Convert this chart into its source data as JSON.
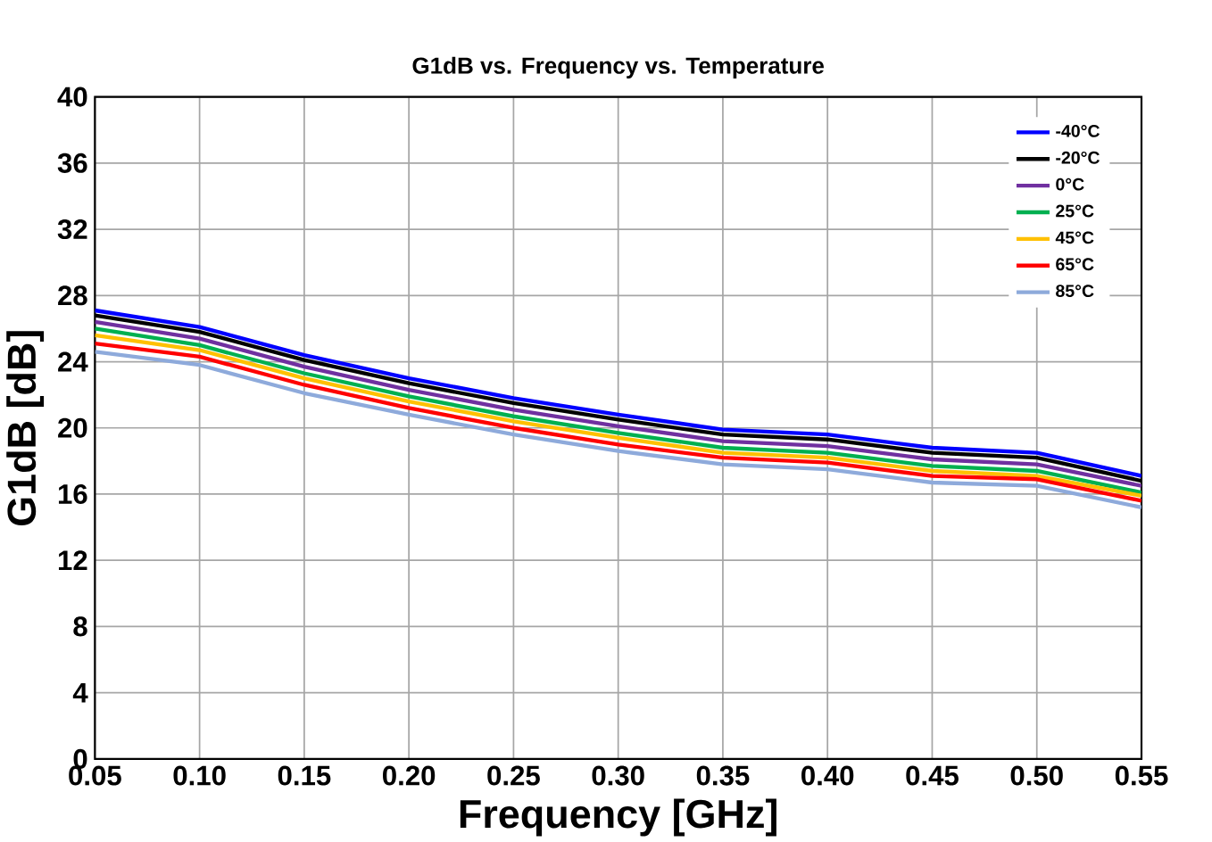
{
  "chart_data": {
    "type": "line",
    "title": "G1dB vs. Frequency vs. Temperature",
    "xlabel": "Frequency [GHz]",
    "ylabel": "G1dB [dB]",
    "x": [
      0.05,
      0.1,
      0.15,
      0.2,
      0.25,
      0.3,
      0.35,
      0.4,
      0.45,
      0.5,
      0.55
    ],
    "series": [
      {
        "name": "-40°C",
        "color": "#0000ff",
        "values": [
          27.1,
          26.1,
          24.4,
          23.0,
          21.8,
          20.8,
          19.9,
          19.6,
          18.8,
          18.5,
          17.1
        ]
      },
      {
        "name": "-20°C",
        "color": "#000000",
        "values": [
          26.8,
          25.8,
          24.1,
          22.7,
          21.5,
          20.5,
          19.6,
          19.3,
          18.5,
          18.2,
          16.8
        ]
      },
      {
        "name": "0°C",
        "color": "#7030a0",
        "values": [
          26.4,
          25.4,
          23.7,
          22.3,
          21.1,
          20.1,
          19.2,
          18.9,
          18.1,
          17.8,
          16.5
        ]
      },
      {
        "name": "25°C",
        "color": "#00b050",
        "values": [
          26.0,
          25.0,
          23.3,
          21.9,
          20.7,
          19.7,
          18.8,
          18.5,
          17.7,
          17.4,
          16.1
        ]
      },
      {
        "name": "45°C",
        "color": "#ffc000",
        "values": [
          25.6,
          24.7,
          23.0,
          21.6,
          20.4,
          19.4,
          18.5,
          18.2,
          17.4,
          17.1,
          15.9
        ]
      },
      {
        "name": "65°C",
        "color": "#ff0000",
        "values": [
          25.1,
          24.3,
          22.6,
          21.2,
          20.0,
          19.0,
          18.2,
          17.9,
          17.1,
          16.9,
          15.6
        ]
      },
      {
        "name": "85°C",
        "color": "#8eaadb",
        "values": [
          24.6,
          23.8,
          22.1,
          20.8,
          19.6,
          18.6,
          17.8,
          17.5,
          16.7,
          16.5,
          15.2
        ]
      }
    ],
    "xlim": [
      0.05,
      0.55
    ],
    "ylim": [
      0,
      40
    ],
    "xticks": [
      {
        "value": 0.05,
        "label": "0.05"
      },
      {
        "value": 0.1,
        "label": "0.10"
      },
      {
        "value": 0.15,
        "label": "0.15"
      },
      {
        "value": 0.2,
        "label": "0.20"
      },
      {
        "value": 0.25,
        "label": "0.25"
      },
      {
        "value": 0.3,
        "label": "0.30"
      },
      {
        "value": 0.35,
        "label": "0.35"
      },
      {
        "value": 0.4,
        "label": "0.40"
      },
      {
        "value": 0.45,
        "label": "0.45"
      },
      {
        "value": 0.5,
        "label": "0.50"
      },
      {
        "value": 0.55,
        "label": "0.55"
      }
    ],
    "yticks": [
      0,
      4,
      8,
      12,
      16,
      20,
      24,
      28,
      32,
      36,
      40
    ],
    "grid": true,
    "legend": "top right",
    "marker": "none",
    "line_style": "solid"
  }
}
